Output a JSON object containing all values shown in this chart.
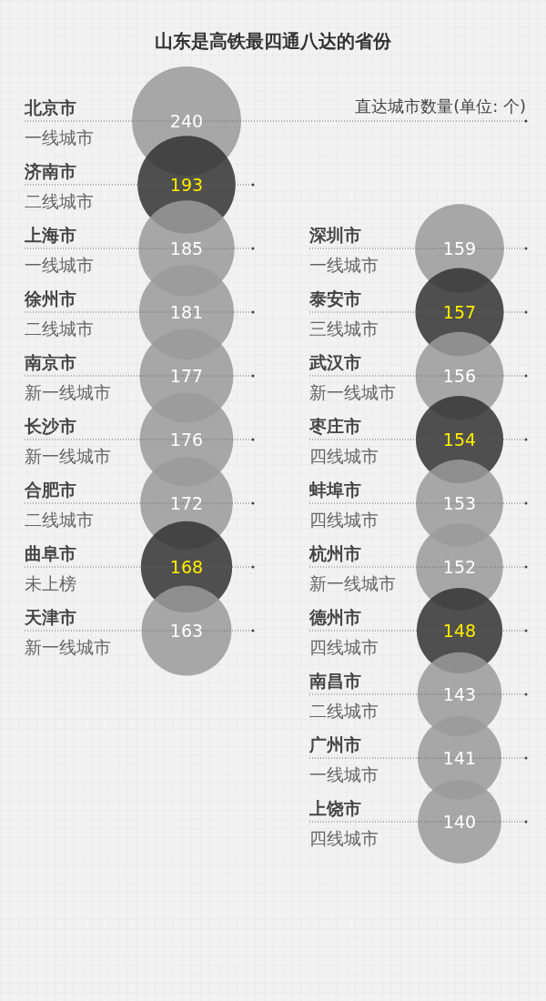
{
  "chart_data": {
    "type": "other",
    "title": "山东是高铁最四通八达的省份",
    "annotations": [
      "直达城市数量(单位: 个)",
      {
        "text": "一线城市",
        "x": "北京市"
      },
      {
        "text": "二线城市",
        "x": "济南市"
      },
      {
        "text": "一线城市",
        "x": "上海市"
      },
      {
        "text": "二线城市",
        "x": "徐州市"
      },
      {
        "text": "新一线城市",
        "x": "南京市"
      },
      {
        "text": "新一线城市",
        "x": "长沙市"
      },
      {
        "text": "二线城市",
        "x": "合肥市"
      },
      {
        "text": "未上榜",
        "x": "曲阜市"
      },
      {
        "text": "新一线城市",
        "x": "天津市"
      },
      {
        "text": "一线城市",
        "x": "深圳市"
      },
      {
        "text": "三线城市",
        "x": "泰安市"
      },
      {
        "text": "新一线城市",
        "x": "武汉市"
      },
      {
        "text": "四线城市",
        "x": "枣庄市"
      },
      {
        "text": "四线城市",
        "x": "蚌埠市"
      },
      {
        "text": "新一线城市",
        "x": "杭州市"
      },
      {
        "text": "四线城市",
        "x": "德州市"
      },
      {
        "text": "二线城市",
        "x": "南昌市"
      },
      {
        "text": "一线城市",
        "x": "广州市"
      },
      {
        "text": "四线城市",
        "x": "上饶市"
      }
    ],
    "data_labels": true,
    "categories": [
      "北京市",
      "济南市",
      "上海市",
      "徐州市",
      "南京市",
      "长沙市",
      "合肥市",
      "曲阜市",
      "天津市",
      "深圳市",
      "泰安市",
      "武汉市",
      "枣庄市",
      "蚌埠市",
      "杭州市",
      "德州市",
      "南昌市",
      "广州市",
      "上饶市"
    ],
    "values": [
      240,
      193,
      185,
      181,
      177,
      176,
      172,
      168,
      163,
      159,
      157,
      156,
      154,
      153,
      152,
      148,
      143,
      141,
      140
    ],
    "colors": [
      "#9a9a9a",
      "#333333",
      "#9a9a9a",
      "#9a9a9a",
      "#9a9a9a",
      "#9a9a9a",
      "#9a9a9a",
      "#333333",
      "#9a9a9a",
      "#9a9a9a",
      "#333333",
      "#9a9a9a",
      "#333333",
      "#9a9a9a",
      "#9a9a9a",
      "#333333",
      "#9a9a9a",
      "#9a9a9a",
      "#9a9a9a"
    ]
  }
}
